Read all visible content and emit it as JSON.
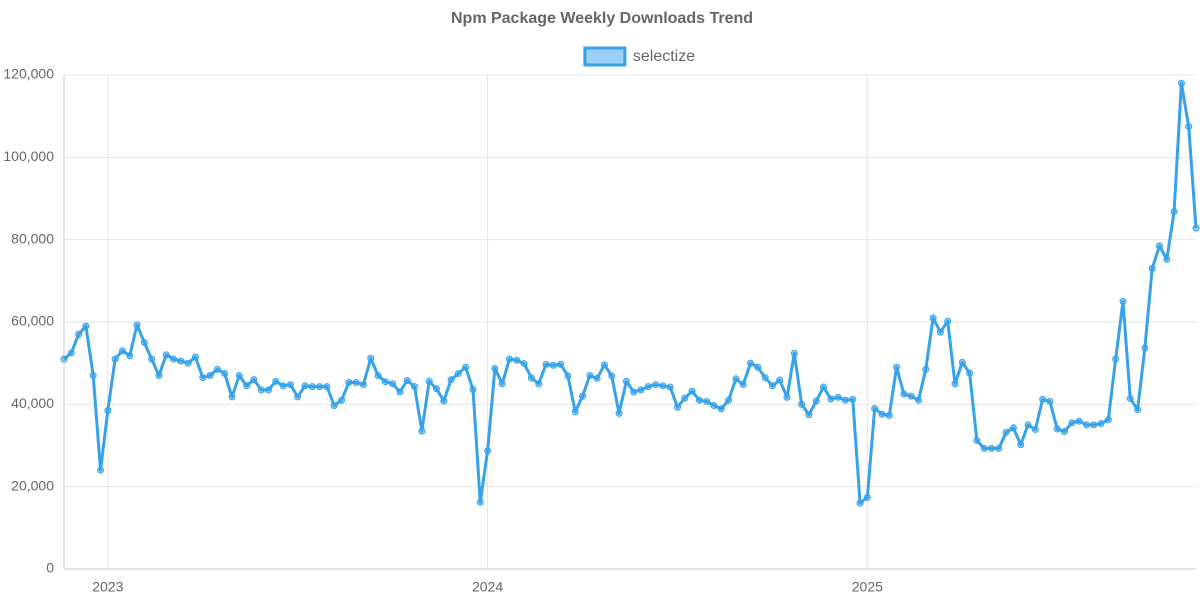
{
  "chart_data": {
    "type": "line",
    "title": "Npm Package Weekly Downloads Trend",
    "categories": [
      null,
      null,
      null,
      null,
      null,
      null,
      "2023",
      null,
      null,
      null,
      null,
      null,
      null,
      null,
      null,
      null,
      null,
      null,
      null,
      null,
      null,
      null,
      null,
      null,
      null,
      null,
      null,
      null,
      null,
      null,
      null,
      null,
      null,
      null,
      null,
      null,
      null,
      null,
      null,
      null,
      null,
      null,
      null,
      null,
      null,
      null,
      null,
      null,
      null,
      null,
      null,
      null,
      null,
      null,
      null,
      null,
      null,
      null,
      "2024",
      null,
      null,
      null,
      null,
      null,
      null,
      null,
      null,
      null,
      null,
      null,
      null,
      null,
      null,
      null,
      null,
      null,
      null,
      null,
      null,
      null,
      null,
      null,
      null,
      null,
      null,
      null,
      null,
      null,
      null,
      null,
      null,
      null,
      null,
      null,
      null,
      null,
      null,
      null,
      null,
      null,
      null,
      null,
      null,
      null,
      null,
      null,
      null,
      null,
      null,
      null,
      "2025",
      null,
      null,
      null,
      null,
      null,
      null,
      null,
      null,
      null,
      null,
      null,
      null,
      null,
      null,
      null,
      null,
      null,
      null,
      null,
      null,
      null,
      null,
      null,
      null,
      null,
      null,
      null,
      null,
      null,
      null,
      null,
      null,
      null,
      null,
      null,
      null,
      null,
      null,
      null,
      null,
      null,
      null,
      null,
      null,
      null
    ],
    "series": [
      {
        "name": "selectize",
        "color": "#36a2eb",
        "values": [
          51000,
          52500,
          57000,
          59000,
          47000,
          24000,
          38500,
          51000,
          53000,
          51800,
          59300,
          55000,
          51000,
          47000,
          52000,
          51000,
          50500,
          50000,
          51500,
          46500,
          47000,
          48500,
          47500,
          41800,
          47000,
          44500,
          46000,
          43500,
          43500,
          45600,
          44500,
          44800,
          41800,
          44500,
          44300,
          44300,
          44300,
          39700,
          41000,
          45300,
          45300,
          44800,
          51200,
          47000,
          45500,
          45000,
          43000,
          45800,
          44300,
          33500,
          45600,
          43800,
          40800,
          46000,
          47500,
          49000,
          43600,
          16200,
          28700,
          48700,
          45000,
          51000,
          50700,
          49900,
          46400,
          45000,
          49700,
          49500,
          49700,
          46900,
          38200,
          42000,
          47000,
          46300,
          49600,
          46900,
          37800,
          45600,
          43000,
          43500,
          44300,
          44800,
          44500,
          44200,
          39300,
          41500,
          43200,
          41000,
          40700,
          39700,
          38900,
          41000,
          46200,
          44800,
          50000,
          49000,
          46500,
          44500,
          45900,
          41700,
          52400,
          40000,
          37500,
          40800,
          44200,
          41300,
          41700,
          41000,
          41200,
          16000,
          17400,
          39000,
          37600,
          37300,
          49000,
          42500,
          42000,
          41000,
          48500,
          61000,
          57500,
          60200,
          45000,
          50200,
          47600,
          31200,
          29300,
          29300,
          29300,
          33200,
          34300,
          30200,
          35000,
          33900,
          41200,
          40700,
          34000,
          33400,
          35500,
          35900,
          35000,
          35000,
          35300,
          36300,
          51000,
          65000,
          41400,
          38700,
          53700,
          73000,
          78500,
          75200,
          86800,
          118000,
          107500,
          82800
        ]
      }
    ],
    "ylim": [
      0,
      120000
    ],
    "yticks": [
      0,
      {
        "value": 20000,
        "label": "20,000"
      },
      {
        "value": 40000,
        "label": "40,000"
      },
      {
        "value": 60000,
        "label": "60,000"
      },
      {
        "value": 80000,
        "label": "80,000"
      },
      {
        "value": 100000,
        "label": "100,000"
      },
      {
        "value": 120000,
        "label": "120,000"
      }
    ],
    "grid": true,
    "legend": "top"
  }
}
